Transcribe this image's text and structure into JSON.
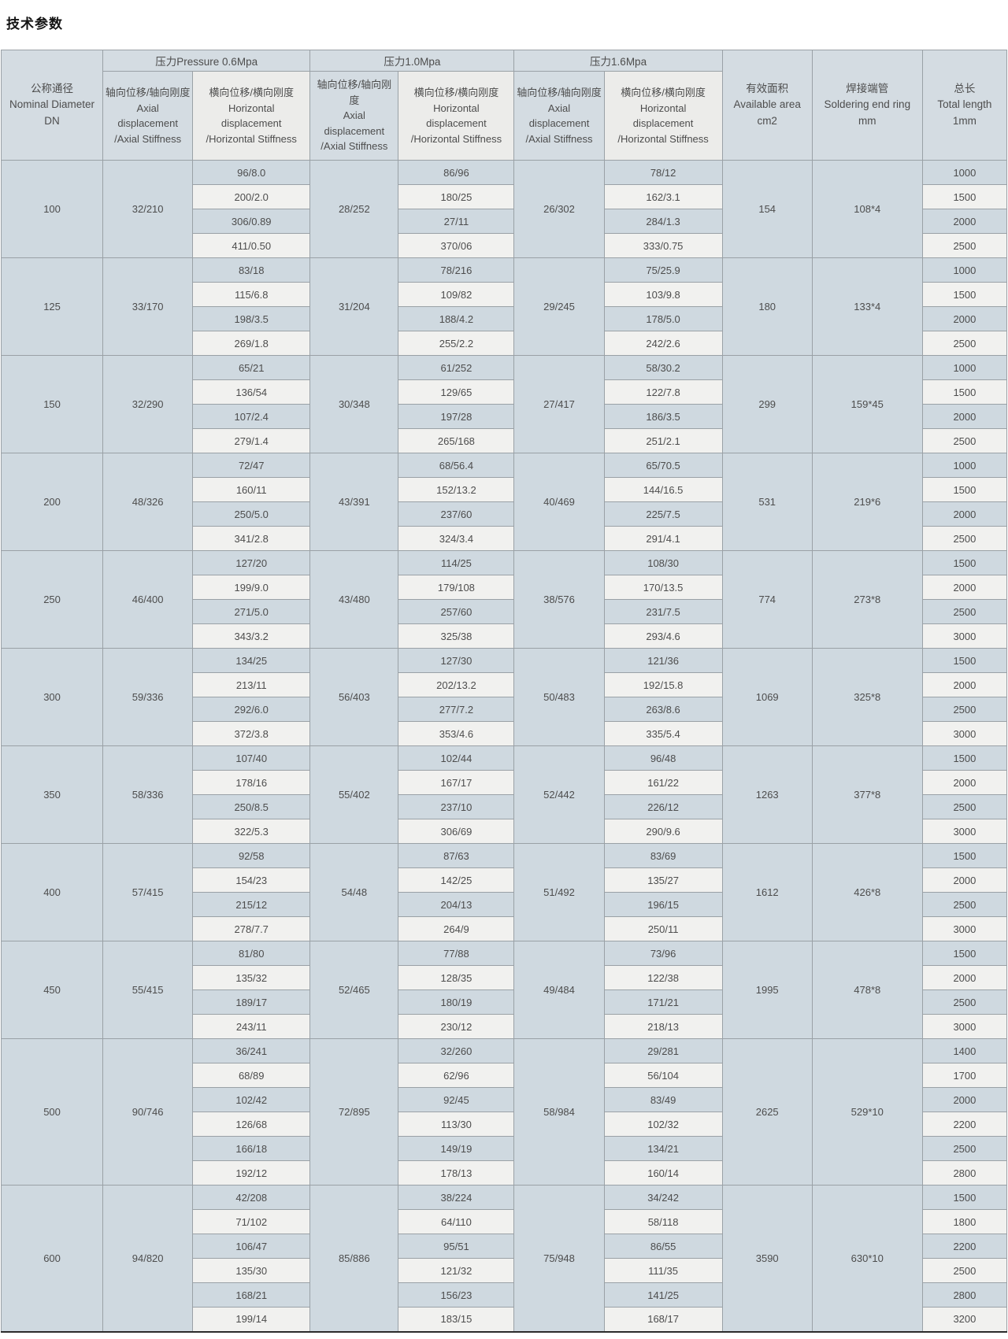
{
  "title": "技术参数",
  "colors": {
    "cell_blue": "#cfd9e0",
    "cell_light": "#f1f1ef",
    "header_blue": "#d4dce2",
    "header_light": "#ececea",
    "border": "#9aa1a6",
    "text": "#4d4d4d"
  },
  "table": {
    "headers": {
      "dn": "公称通径\nNominal Diameter\nDN",
      "pressure_groups": [
        "压力Pressure 0.6Mpa",
        "压力1.0Mpa",
        "压力1.6Mpa"
      ],
      "axial": "轴向位移/轴向刚度\nAxial\ndisplacement\n/Axial Stiffness",
      "horizontal": "横向位移/横向刚度\nHorizontal\ndisplacement\n/Horizontal Stiffness",
      "area": "有效面积\nAvailable area\ncm2",
      "ring": "焊接端管\nSoldering end ring\nmm",
      "length": "总长\nTotal length\n1mm"
    },
    "blocks": [
      {
        "dn": "100",
        "axial_06": "32/210",
        "axial_10": "28/252",
        "axial_16": "26/302",
        "horizontal_06": [
          "96/8.0",
          "200/2.0",
          "306/0.89",
          "411/0.50"
        ],
        "horizontal_10": [
          "86/96",
          "180/25",
          "27/11",
          "370/06"
        ],
        "horizontal_16": [
          "78/12",
          "162/3.1",
          "284/1.3",
          "333/0.75"
        ],
        "area": "154",
        "ring": "108*4",
        "lengths": [
          "1000",
          "1500",
          "2000",
          "2500"
        ]
      },
      {
        "dn": "125",
        "axial_06": "33/170",
        "axial_10": "31/204",
        "axial_16": "29/245",
        "horizontal_06": [
          "83/18",
          "115/6.8",
          "198/3.5",
          "269/1.8"
        ],
        "horizontal_10": [
          "78/216",
          "109/82",
          "188/4.2",
          "255/2.2"
        ],
        "horizontal_16": [
          "75/25.9",
          "103/9.8",
          "178/5.0",
          "242/2.6"
        ],
        "area": "180",
        "ring": "133*4",
        "lengths": [
          "1000",
          "1500",
          "2000",
          "2500"
        ]
      },
      {
        "dn": "150",
        "axial_06": "32/290",
        "axial_10": "30/348",
        "axial_16": "27/417",
        "horizontal_06": [
          "65/21",
          "136/54",
          "107/2.4",
          "279/1.4"
        ],
        "horizontal_10": [
          "61/252",
          "129/65",
          "197/28",
          "265/168"
        ],
        "horizontal_16": [
          "58/30.2",
          "122/7.8",
          "186/3.5",
          "251/2.1"
        ],
        "area": "299",
        "ring": "159*45",
        "lengths": [
          "1000",
          "1500",
          "2000",
          "2500"
        ]
      },
      {
        "dn": "200",
        "axial_06": "48/326",
        "axial_10": "43/391",
        "axial_16": "40/469",
        "horizontal_06": [
          "72/47",
          "160/11",
          "250/5.0",
          "341/2.8"
        ],
        "horizontal_10": [
          "68/56.4",
          "152/13.2",
          "237/60",
          "324/3.4"
        ],
        "horizontal_16": [
          "65/70.5",
          "144/16.5",
          "225/7.5",
          "291/4.1"
        ],
        "area": "531",
        "ring": "219*6",
        "lengths": [
          "1000",
          "1500",
          "2000",
          "2500"
        ]
      },
      {
        "dn": "250",
        "axial_06": "46/400",
        "axial_10": "43/480",
        "axial_16": "38/576",
        "horizontal_06": [
          "127/20",
          "199/9.0",
          "271/5.0",
          "343/3.2"
        ],
        "horizontal_10": [
          "114/25",
          "179/108",
          "257/60",
          "325/38"
        ],
        "horizontal_16": [
          "108/30",
          "170/13.5",
          "231/7.5",
          "293/4.6"
        ],
        "area": "774",
        "ring": "273*8",
        "lengths": [
          "1500",
          "2000",
          "2500",
          "3000"
        ]
      },
      {
        "dn": "300",
        "axial_06": "59/336",
        "axial_10": "56/403",
        "axial_16": "50/483",
        "horizontal_06": [
          "134/25",
          "213/11",
          "292/6.0",
          "372/3.8"
        ],
        "horizontal_10": [
          "127/30",
          "202/13.2",
          "277/7.2",
          "353/4.6"
        ],
        "horizontal_16": [
          "121/36",
          "192/15.8",
          "263/8.6",
          "335/5.4"
        ],
        "area": "1069",
        "ring": "325*8",
        "lengths": [
          "1500",
          "2000",
          "2500",
          "3000"
        ]
      },
      {
        "dn": "350",
        "axial_06": "58/336",
        "axial_10": "55/402",
        "axial_16": "52/442",
        "horizontal_06": [
          "107/40",
          "178/16",
          "250/8.5",
          "322/5.3"
        ],
        "horizontal_10": [
          "102/44",
          "167/17",
          "237/10",
          "306/69"
        ],
        "horizontal_16": [
          "96/48",
          "161/22",
          "226/12",
          "290/9.6"
        ],
        "area": "1263",
        "ring": "377*8",
        "lengths": [
          "1500",
          "2000",
          "2500",
          "3000"
        ]
      },
      {
        "dn": "400",
        "axial_06": "57/415",
        "axial_10": "54/48",
        "axial_16": "51/492",
        "horizontal_06": [
          "92/58",
          "154/23",
          "215/12",
          "278/7.7"
        ],
        "horizontal_10": [
          "87/63",
          "142/25",
          "204/13",
          "264/9"
        ],
        "horizontal_16": [
          "83/69",
          "135/27",
          "196/15",
          "250/11"
        ],
        "area": "1612",
        "ring": "426*8",
        "lengths": [
          "1500",
          "2000",
          "2500",
          "3000"
        ]
      },
      {
        "dn": "450",
        "axial_06": "55/415",
        "axial_10": "52/465",
        "axial_16": "49/484",
        "horizontal_06": [
          "81/80",
          "135/32",
          "189/17",
          "243/11"
        ],
        "horizontal_10": [
          "77/88",
          "128/35",
          "180/19",
          "230/12"
        ],
        "horizontal_16": [
          "73/96",
          "122/38",
          "171/21",
          "218/13"
        ],
        "area": "1995",
        "ring": "478*8",
        "lengths": [
          "1500",
          "2000",
          "2500",
          "3000"
        ]
      },
      {
        "dn": "500",
        "axial_06": "90/746",
        "axial_10": "72/895",
        "axial_16": "58/984",
        "horizontal_06": [
          "36/241",
          "68/89",
          "102/42",
          "126/68",
          "166/18",
          "192/12"
        ],
        "horizontal_10": [
          "32/260",
          "62/96",
          "92/45",
          "113/30",
          "149/19",
          "178/13"
        ],
        "horizontal_16": [
          "29/281",
          "56/104",
          "83/49",
          "102/32",
          "134/21",
          "160/14"
        ],
        "area": "2625",
        "ring": "529*10",
        "lengths": [
          "1400",
          "1700",
          "2000",
          "2200",
          "2500",
          "2800"
        ]
      },
      {
        "dn": "600",
        "axial_06": "94/820",
        "axial_10": "85/886",
        "axial_16": "75/948",
        "horizontal_06": [
          "42/208",
          "71/102",
          "106/47",
          "135/30",
          "168/21",
          "199/14"
        ],
        "horizontal_10": [
          "38/224",
          "64/110",
          "95/51",
          "121/32",
          "156/23",
          "183/15"
        ],
        "horizontal_16": [
          "34/242",
          "58/118",
          "86/55",
          "111/35",
          "141/25",
          "168/17"
        ],
        "area": "3590",
        "ring": "630*10",
        "lengths": [
          "1500",
          "1800",
          "2200",
          "2500",
          "2800",
          "3200"
        ]
      }
    ]
  }
}
